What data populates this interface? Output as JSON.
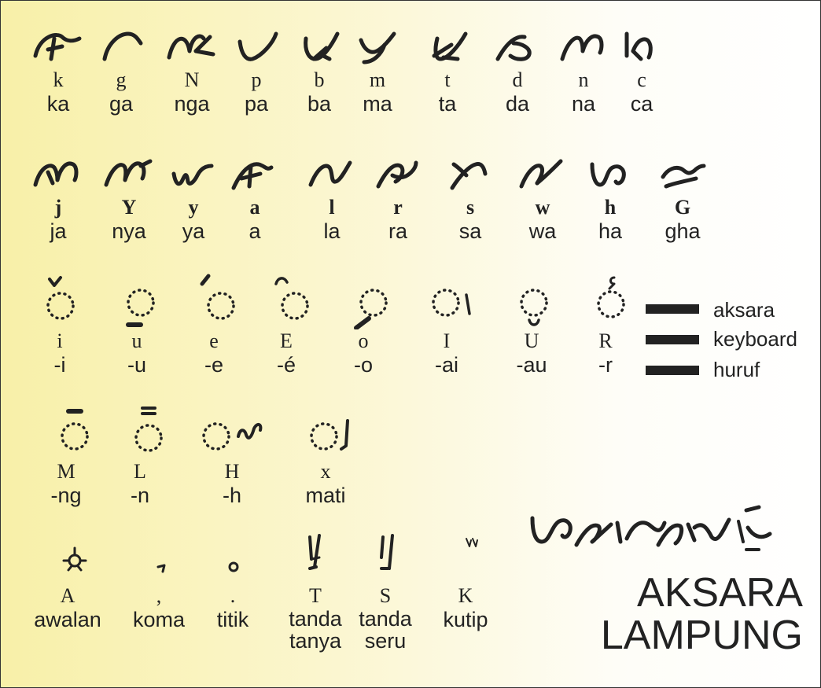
{
  "rows": {
    "consonants1": [
      {
        "key": "k",
        "latin": "ka",
        "glyph": "ka-glyph"
      },
      {
        "key": "g",
        "latin": "ga",
        "glyph": "ga-glyph"
      },
      {
        "key": "N",
        "latin": "nga",
        "glyph": "nga-glyph"
      },
      {
        "key": "p",
        "latin": "pa",
        "glyph": "pa-glyph"
      },
      {
        "key": "b",
        "latin": "ba",
        "glyph": "ba-glyph"
      },
      {
        "key": "m",
        "latin": "ma",
        "glyph": "ma-glyph"
      },
      {
        "key": "t",
        "latin": "ta",
        "glyph": "ta-glyph"
      },
      {
        "key": "d",
        "latin": "da",
        "glyph": "da-glyph"
      },
      {
        "key": "n",
        "latin": "na",
        "glyph": "na-glyph"
      },
      {
        "key": "c",
        "latin": "ca",
        "glyph": "ca-glyph"
      }
    ],
    "consonants2": [
      {
        "key": "j",
        "latin": "ja",
        "glyph": "ja-glyph"
      },
      {
        "key": "Y",
        "latin": "nya",
        "glyph": "nya-glyph"
      },
      {
        "key": "y",
        "latin": "ya",
        "glyph": "ya-glyph"
      },
      {
        "key": "a",
        "latin": "a",
        "glyph": "a-glyph"
      },
      {
        "key": "l",
        "latin": "la",
        "glyph": "la-glyph"
      },
      {
        "key": "r",
        "latin": "ra",
        "glyph": "ra-glyph"
      },
      {
        "key": "s",
        "latin": "sa",
        "glyph": "sa-glyph"
      },
      {
        "key": "w",
        "latin": "wa",
        "glyph": "wa-glyph"
      },
      {
        "key": "h",
        "latin": "ha",
        "glyph": "ha-glyph"
      },
      {
        "key": "G",
        "latin": "gha",
        "glyph": "gha-glyph"
      }
    ],
    "vowels": [
      {
        "key": "i",
        "latin": "-i",
        "glyph": "ulan-i-sign"
      },
      {
        "key": "u",
        "latin": "-u",
        "glyph": "bitan-u-sign"
      },
      {
        "key": "e",
        "latin": "-e",
        "glyph": "ulan-e-sign"
      },
      {
        "key": "E",
        "latin": "-é",
        "glyph": "ulan-e-acute-sign"
      },
      {
        "key": "o",
        "latin": "-o",
        "glyph": "bitan-o-sign"
      },
      {
        "key": "I",
        "latin": "-ai",
        "glyph": "tekelingai-sign"
      },
      {
        "key": "U",
        "latin": "-au",
        "glyph": "keleniau-sign"
      },
      {
        "key": "R",
        "latin": "-r",
        "glyph": "rejunjung-sign"
      }
    ],
    "finals": [
      {
        "key": "M",
        "latin": "-ng",
        "glyph": "datas-ng-sign"
      },
      {
        "key": "L",
        "latin": "-n",
        "glyph": "tekelubang-n-sign"
      },
      {
        "key": "H",
        "latin": "-h",
        "glyph": "tekelingah-h-sign"
      },
      {
        "key": "x",
        "latin": "mati",
        "glyph": "nengen-mati-sign"
      }
    ],
    "punctuation": [
      {
        "key": "A",
        "latin": "awalan",
        "glyph": "awalan-sign"
      },
      {
        "key": ",",
        "latin": "koma",
        "glyph": "koma-sign"
      },
      {
        "key": ".",
        "latin": "titik",
        "glyph": "titik-sign"
      },
      {
        "key": "T",
        "latin": "tanda tanya",
        "glyph": "question-sign"
      },
      {
        "key": "S",
        "latin": "tanda seru",
        "glyph": "exclamation-sign"
      },
      {
        "key": "K",
        "latin": "kutip",
        "glyph": "quote-sign"
      }
    ]
  },
  "legend": {
    "items": [
      "aksara",
      "keyboard",
      "huruf"
    ]
  },
  "title": {
    "line1": "AKSARA",
    "line2": "LAMPUNG"
  },
  "demo_glyph": "aksara-lampung-script-word",
  "colors": {
    "ink": "#222222",
    "gradient_start": "#f8f0a8",
    "gradient_end": "#ffffff"
  }
}
